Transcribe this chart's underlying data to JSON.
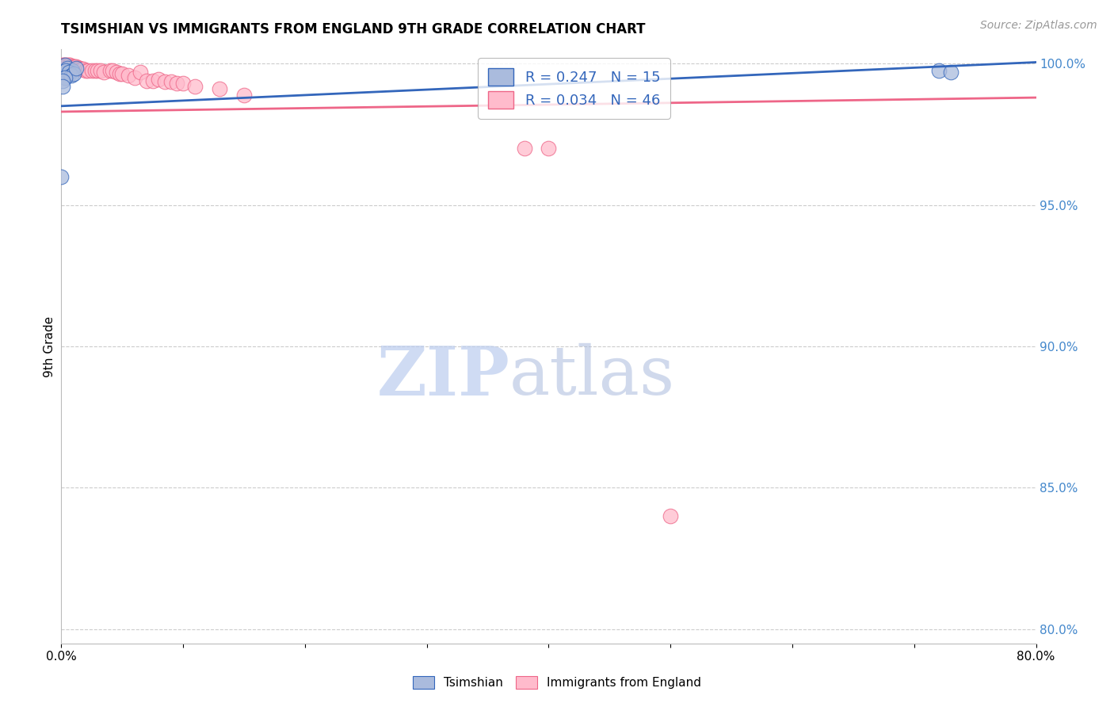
{
  "title": "TSIMSHIAN VS IMMIGRANTS FROM ENGLAND 9TH GRADE CORRELATION CHART",
  "source": "Source: ZipAtlas.com",
  "ylabel": "9th Grade",
  "xlim": [
    0.0,
    0.8
  ],
  "ylim": [
    0.795,
    1.005
  ],
  "xticks": [
    0.0,
    0.1,
    0.2,
    0.3,
    0.4,
    0.5,
    0.6,
    0.7,
    0.8
  ],
  "xticklabels": [
    "0.0%",
    "",
    "",
    "",
    "",
    "",
    "",
    "",
    "80.0%"
  ],
  "yticks_right": [
    0.8,
    0.85,
    0.9,
    0.95,
    1.0
  ],
  "yticklabels_right": [
    "80.0%",
    "85.0%",
    "90.0%",
    "95.0%",
    "100.0%"
  ],
  "blue_R": 0.247,
  "blue_N": 15,
  "pink_R": 0.034,
  "pink_N": 46,
  "blue_color": "#AABBDD",
  "pink_color": "#FFBBCC",
  "trend_blue": "#3366BB",
  "trend_pink": "#EE6688",
  "blue_scatter_x": [
    0.003,
    0.005,
    0.007,
    0.009,
    0.004,
    0.006,
    0.008,
    0.01,
    0.012,
    0.003,
    0.001,
    0.001,
    0.72,
    0.73,
    0.0
  ],
  "blue_scatter_y": [
    0.9995,
    0.9985,
    0.9965,
    0.9975,
    0.9975,
    0.997,
    0.996,
    0.9965,
    0.9985,
    0.995,
    0.994,
    0.992,
    0.9975,
    0.997,
    0.96
  ],
  "pink_scatter_x": [
    0.001,
    0.002,
    0.003,
    0.004,
    0.005,
    0.006,
    0.007,
    0.008,
    0.009,
    0.01,
    0.011,
    0.012,
    0.013,
    0.014,
    0.015,
    0.016,
    0.017,
    0.018,
    0.02,
    0.022,
    0.025,
    0.028,
    0.03,
    0.032,
    0.035,
    0.04,
    0.042,
    0.045,
    0.048,
    0.05,
    0.055,
    0.06,
    0.065,
    0.07,
    0.075,
    0.08,
    0.085,
    0.09,
    0.095,
    0.1,
    0.11,
    0.13,
    0.15,
    0.38,
    0.4,
    0.5
  ],
  "pink_scatter_y": [
    0.9995,
    0.9995,
    0.9995,
    0.9995,
    0.9995,
    0.9995,
    0.9995,
    0.999,
    0.999,
    0.999,
    0.999,
    0.999,
    0.9985,
    0.9985,
    0.9985,
    0.998,
    0.998,
    0.998,
    0.9975,
    0.9975,
    0.9975,
    0.9975,
    0.9975,
    0.9975,
    0.997,
    0.9975,
    0.9975,
    0.997,
    0.9965,
    0.9965,
    0.996,
    0.995,
    0.997,
    0.994,
    0.994,
    0.9945,
    0.9935,
    0.9935,
    0.993,
    0.993,
    0.992,
    0.991,
    0.989,
    0.97,
    0.97,
    0.84
  ],
  "blue_trend_x0": 0.0,
  "blue_trend_y0": 0.985,
  "blue_trend_x1": 0.8,
  "blue_trend_y1": 1.0005,
  "pink_trend_x0": 0.0,
  "pink_trend_y0": 0.983,
  "pink_trend_x1": 0.8,
  "pink_trend_y1": 0.988,
  "watermark_zip": "ZIP",
  "watermark_atlas": "atlas",
  "background_color": "#FFFFFF",
  "grid_color": "#CCCCCC"
}
